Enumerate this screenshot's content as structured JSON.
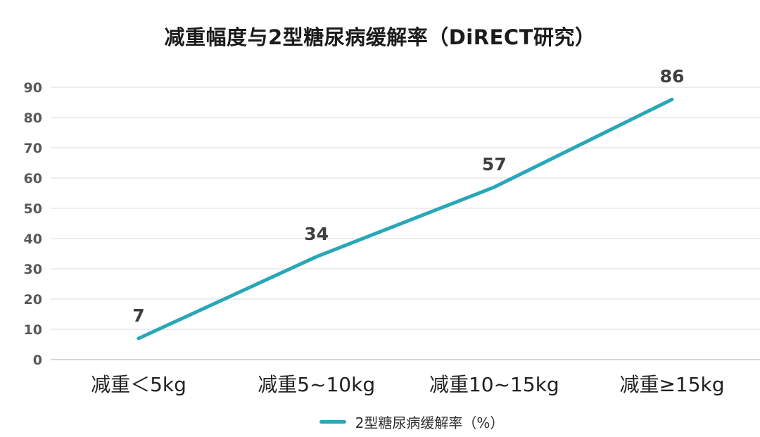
{
  "chart": {
    "title": "减重幅度与2型糖尿病缓解率（DiRECT研究）"
  },
  "chart_data": {
    "type": "line",
    "title": "减重幅度与2型糖尿病缓解率（DiRECT研究）",
    "categories": [
      "减重＜5kg",
      "减重5~10kg",
      "减重10~15kg",
      "减重≥15kg"
    ],
    "series": [
      {
        "name": "2型糖尿病缓解率（%）",
        "values": [
          7,
          34,
          57,
          86
        ],
        "color": "#29A7B7"
      }
    ],
    "xlabel": "",
    "ylabel": "",
    "ylim": [
      0,
      90
    ],
    "ytick_step": 10,
    "yticks": [
      0,
      10,
      20,
      30,
      40,
      50,
      60,
      70,
      80,
      90
    ],
    "grid": true,
    "data_labels": true,
    "legend_position": "bottom",
    "colors": {
      "accent": "#29A7B7",
      "gridline": "#e7e7e7",
      "zero_gridline": "#d6d6d6",
      "title_text": "#1b1b1b",
      "axis_text": "#575757",
      "category_text": "#212121",
      "data_label_text": "#3f3f3f"
    }
  },
  "legend": {
    "label": "2型糖尿病缓解率（%）"
  }
}
